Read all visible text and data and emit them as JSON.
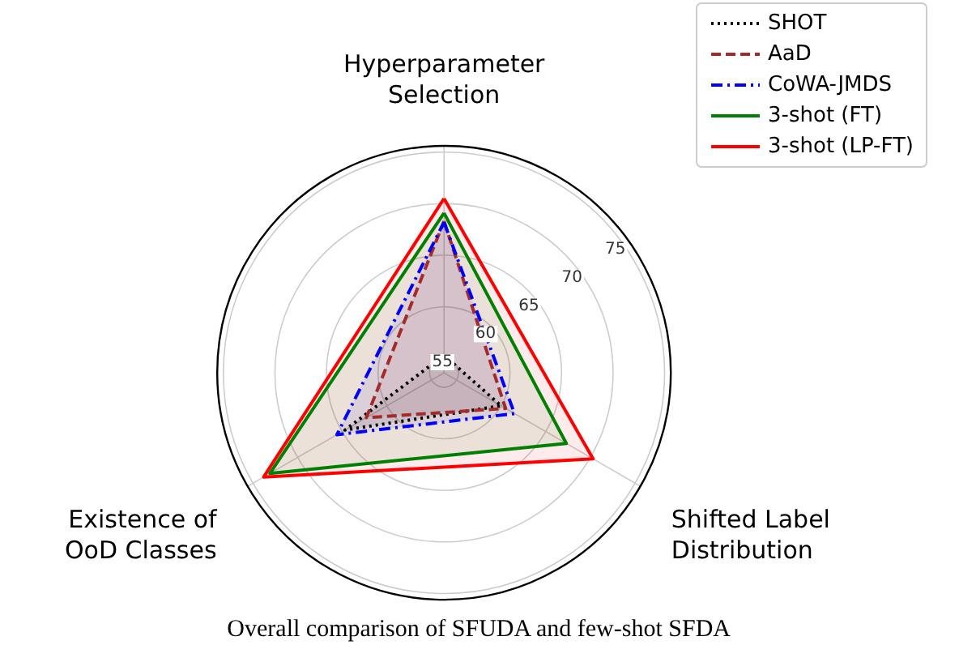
{
  "chart_data": {
    "type": "radar",
    "categories": [
      "Hyperparameter Selection",
      "Shifted Label Distribution",
      "Existence of OoD Classes"
    ],
    "series": [
      {
        "name": "SHOT",
        "color": "#000000",
        "line_style": "dotted",
        "values": [
          55.3,
          60.0,
          64.7
        ]
      },
      {
        "name": "AaD",
        "color": "#a52a2a",
        "line_style": "dashed",
        "values": [
          68.3,
          60.5,
          62.3
        ]
      },
      {
        "name": "CoWA-JMDS",
        "color": "#0000ff",
        "line_style": "dashdot",
        "values": [
          68.2,
          61.5,
          65.6
        ]
      },
      {
        "name": "3-shot (FT)",
        "color": "#008000",
        "line_style": "solid",
        "values": [
          69.1,
          67.3,
          73.1
        ]
      },
      {
        "name": "3-shot (LP-FT)",
        "color": "#ff0000",
        "line_style": "solid",
        "values": [
          70.5,
          70.3,
          73.8
        ]
      }
    ],
    "ylim": [
      53.6,
      75.6
    ],
    "yticks": [
      55,
      60,
      65,
      70,
      75
    ],
    "grid": true,
    "legend": "top right",
    "annotations": [
      "Overall comparison of SFUDA and few-shot SFDA"
    ]
  }
}
